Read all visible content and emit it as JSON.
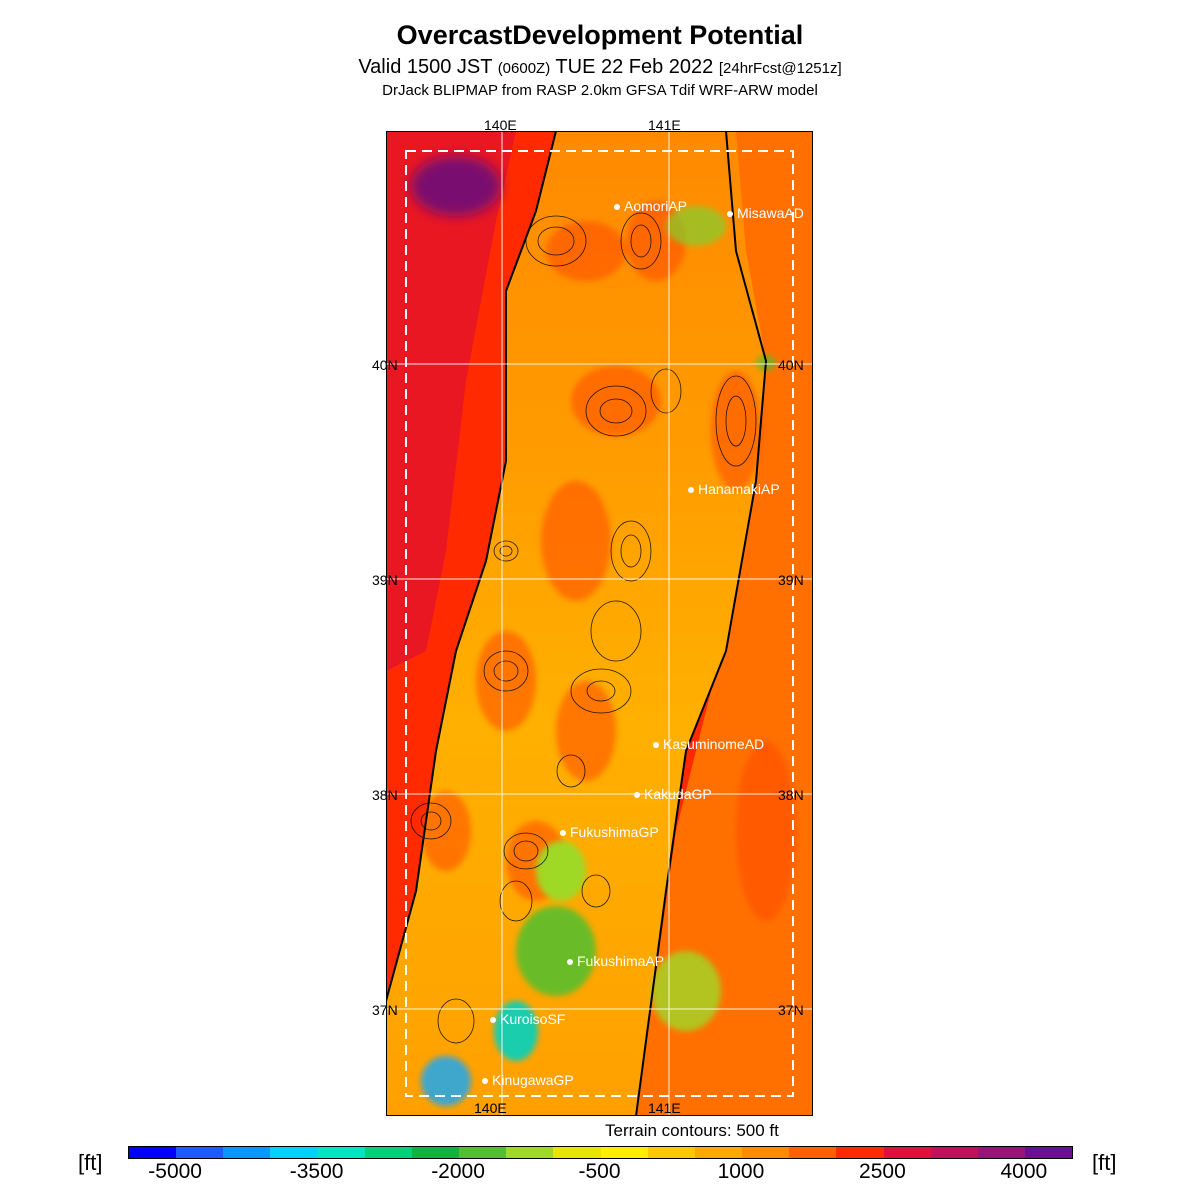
{
  "title": "OvercastDevelopment Potential",
  "subtitle": {
    "valid": "Valid 1500 JST",
    "zulu": "(0600Z)",
    "date": "TUE 22 Feb 2022",
    "forecast": "[24hrFcst@1251z]"
  },
  "model_line": "DrJack BLIPMAP from RASP 2.0km GFSA Tdif WRF-ARW model",
  "axes": {
    "lon_labels": [
      "140E",
      "141E"
    ],
    "lat_labels": [
      "40N",
      "39N",
      "38N",
      "37N"
    ]
  },
  "stations": [
    {
      "name": "AomoriAP"
    },
    {
      "name": "MisawaAD"
    },
    {
      "name": "HanamakiAP"
    },
    {
      "name": "KasuminomeAD"
    },
    {
      "name": "KakudaGP"
    },
    {
      "name": "FukushimaGP"
    },
    {
      "name": "FukushimaAP"
    },
    {
      "name": "KuroisoSF"
    },
    {
      "name": "KinugawaGP"
    }
  ],
  "terrain_note": "Terrain contours: 500 ft",
  "colorbar": {
    "unit": "[ft]",
    "tick_labels": [
      "-5000",
      "-3500",
      "-2000",
      "-500",
      "1000",
      "2500",
      "4000"
    ],
    "colors": [
      "#0000ff",
      "#1c5cff",
      "#0a96ff",
      "#00d2ff",
      "#00e6c0",
      "#00d07a",
      "#10b43c",
      "#50c030",
      "#a0d828",
      "#e6e600",
      "#ffee00",
      "#ffc800",
      "#ffa800",
      "#ff8a00",
      "#ff6000",
      "#ff2a00",
      "#e0103c",
      "#c0125a",
      "#9a1478",
      "#6a1096"
    ]
  }
}
